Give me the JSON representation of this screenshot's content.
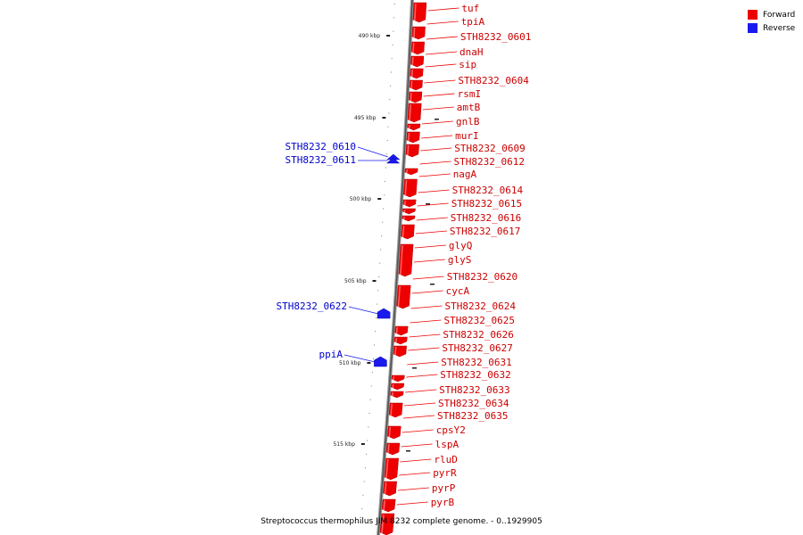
{
  "caption": "Streptococcus thermophilus JIM 8232 complete genome. - 0..1929905",
  "legend": [
    {
      "label": "Forward",
      "color": "#ee0000"
    },
    {
      "label": "Reverse",
      "color": "#1a1aee"
    }
  ],
  "colors": {
    "forward": "#ee0000",
    "reverse": "#1a1aee",
    "backbone": "#666666"
  },
  "axis_ticks": [
    "490 kbp",
    "495 kbp",
    "500 kbp",
    "505 kbp",
    "510 kbp",
    "515 kbp"
  ],
  "forward_genes": [
    "tuf",
    "tpiA",
    "STH8232_0601",
    "dnaH",
    "sip",
    "STH8232_0604",
    "rsmI",
    "amtB",
    "gnlB",
    "murI",
    "STH8232_0609",
    "STH8232_0612",
    "nagA",
    "STH8232_0614",
    "STH8232_0615",
    "STH8232_0616",
    "STH8232_0617",
    "glyQ",
    "glyS",
    "STH8232_0620",
    "cycA",
    "STH8232_0624",
    "STH8232_0625",
    "STH8232_0626",
    "STH8232_0627",
    "STH8232_0631",
    "STH8232_0632",
    "STH8232_0633",
    "STH8232_0634",
    "STH8232_0635",
    "cpsY2",
    "lspA",
    "rluD",
    "pyrR",
    "pyrP",
    "pyrB"
  ],
  "reverse_genes": [
    "STH8232_0610",
    "STH8232_0611",
    "STH8232_0622",
    "ppiA"
  ]
}
